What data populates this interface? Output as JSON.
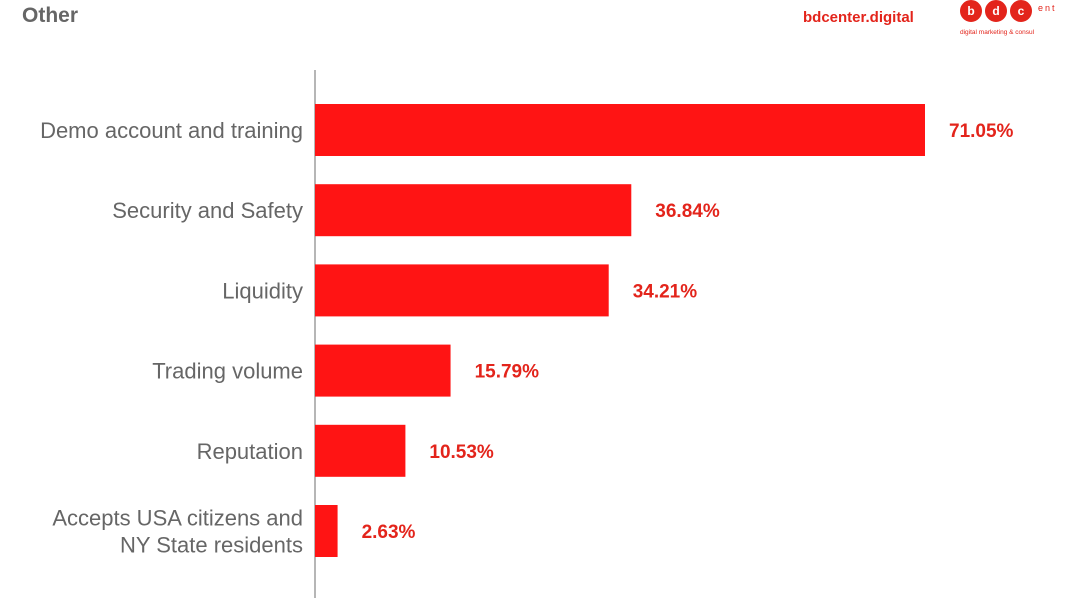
{
  "header": {
    "title": "Other",
    "brand": "bdcenter.digital",
    "logo": {
      "letters": [
        "b",
        "d",
        "c"
      ],
      "suffix": "ent",
      "tagline": "digital marketing & consul"
    }
  },
  "colors": {
    "bar": "#ff1414",
    "value_label": "#e3241b",
    "category_label": "#666666",
    "axis": "#9e9e9e"
  },
  "chart_data": {
    "type": "bar",
    "orientation": "horizontal",
    "title": "Other",
    "categories": [
      "Demo account and training",
      "Security and Safety",
      "Liquidity",
      "Trading volume",
      "Reputation",
      "Accepts USA citizens and NY State residents"
    ],
    "category_lines": [
      [
        "Demo account and training"
      ],
      [
        "Security and Safety"
      ],
      [
        "Liquidity"
      ],
      [
        "Trading volume"
      ],
      [
        "Reputation"
      ],
      [
        "Accepts USA citizens and",
        "NY State residents"
      ]
    ],
    "values": [
      71.05,
      36.84,
      34.21,
      15.79,
      10.53,
      2.63
    ],
    "value_labels": [
      "71.05%",
      "36.84%",
      "34.21%",
      "15.79%",
      "10.53%",
      "2.63%"
    ],
    "unit": "%",
    "xlim": [
      0,
      71.05
    ],
    "grid": false,
    "legend": "none"
  }
}
